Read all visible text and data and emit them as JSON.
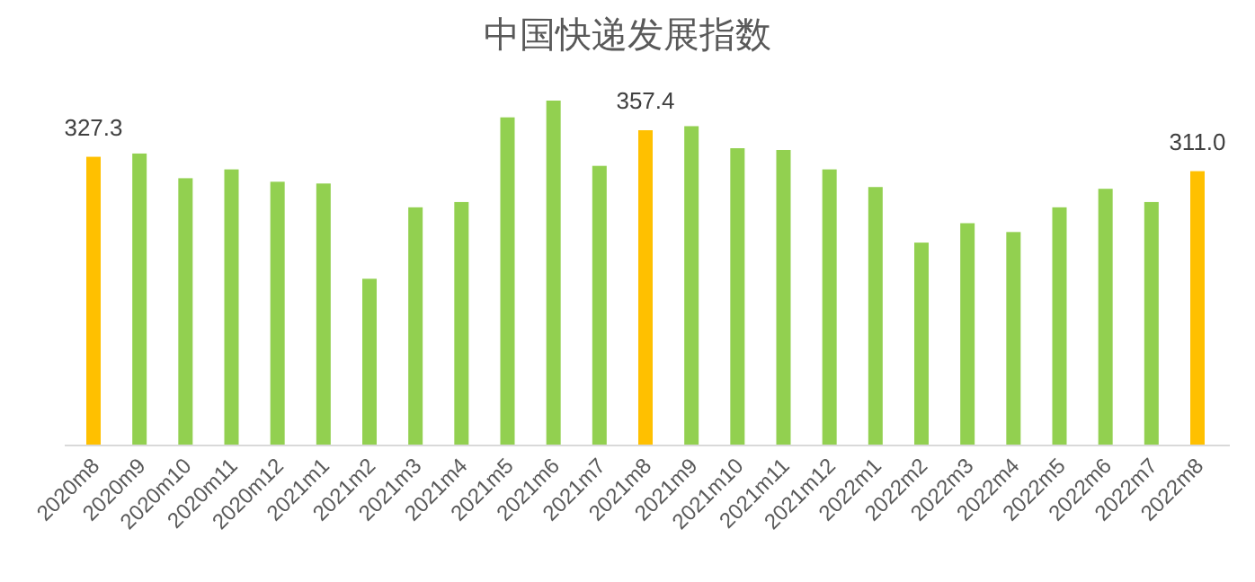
{
  "chart_data": {
    "type": "bar",
    "title": "中国快递发展指数",
    "categories": [
      "2020m8",
      "2020m9",
      "2020m10",
      "2020m11",
      "2020m12",
      "2021m1",
      "2021m2",
      "2021m3",
      "2021m4",
      "2021m5",
      "2021m6",
      "2021m7",
      "2021m8",
      "2021m9",
      "2021m10",
      "2021m11",
      "2021m12",
      "2022m1",
      "2022m2",
      "2022m3",
      "2022m4",
      "2022m5",
      "2022m6",
      "2022m7",
      "2022m8"
    ],
    "values": [
      327.3,
      331,
      303,
      313,
      299,
      297,
      189,
      270,
      276,
      372,
      391,
      317,
      357.4,
      362,
      337,
      335,
      313,
      293,
      230,
      252,
      242,
      270,
      291,
      276,
      311.0
    ],
    "colors": [
      "#ffc000",
      "#92d050",
      "#92d050",
      "#92d050",
      "#92d050",
      "#92d050",
      "#92d050",
      "#92d050",
      "#92d050",
      "#92d050",
      "#92d050",
      "#92d050",
      "#ffc000",
      "#92d050",
      "#92d050",
      "#92d050",
      "#92d050",
      "#92d050",
      "#92d050",
      "#92d050",
      "#92d050",
      "#92d050",
      "#92d050",
      "#92d050",
      "#ffc000"
    ],
    "value_labels": [
      "327.3",
      null,
      null,
      null,
      null,
      null,
      null,
      null,
      null,
      null,
      null,
      null,
      "357.4",
      null,
      null,
      null,
      null,
      null,
      null,
      null,
      null,
      null,
      null,
      null,
      "311.0"
    ],
    "data_labels": false
  }
}
